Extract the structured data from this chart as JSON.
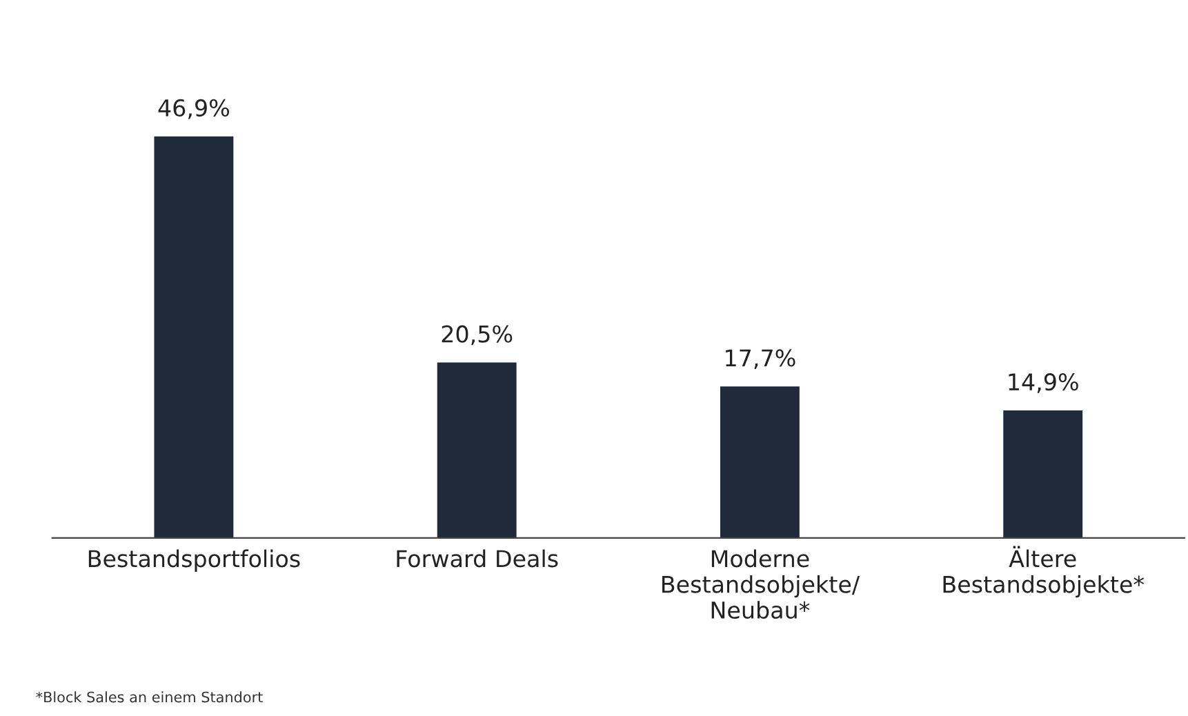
{
  "chart_data": {
    "type": "bar",
    "categories": [
      "Bestandsportfolios",
      "Forward Deals",
      "Moderne\nBestandsobjekte/\nNeubau*",
      "Ältere\nBestandsobjekte*"
    ],
    "values": [
      46.9,
      20.5,
      17.7,
      14.9
    ],
    "value_labels": [
      "46,9%",
      "20,5%",
      "17,7%",
      "14,9%"
    ],
    "color": "#1f2b3a",
    "grid": false,
    "annotations": [
      "*Block Sales an einem Standort"
    ]
  }
}
